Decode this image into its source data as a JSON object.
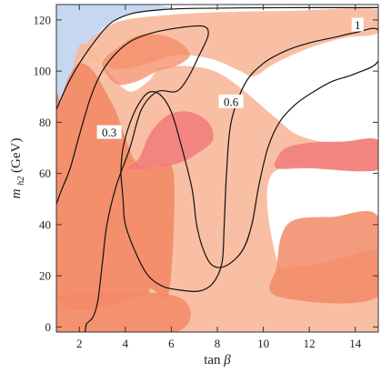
{
  "chart_data": {
    "type": "contour",
    "xlabel": {
      "text": "tan",
      "symbol": "β"
    },
    "ylabel": {
      "text": "m",
      "subscript": "h2",
      "suffix": "(GeV)"
    },
    "xlim": [
      1,
      15
    ],
    "ylim": [
      -2,
      126
    ],
    "xticks": [
      2,
      4,
      6,
      8,
      10,
      12,
      14
    ],
    "yticks": [
      0,
      20,
      40,
      60,
      80,
      100,
      120
    ],
    "colors": {
      "excluded_light": "#f8b89a",
      "excluded_medium": "#f38a66",
      "excluded_pink": "#f27a7a",
      "blue_region": "#c6d8ef",
      "contour_line": "#111111",
      "frame": "#333333"
    },
    "regions": [
      {
        "name": "blue",
        "color": "blue_region",
        "opacity": 1,
        "points": [
          [
            1.0,
            85
          ],
          [
            2.0,
            105
          ],
          [
            3.2,
            118
          ],
          [
            4.5,
            123
          ],
          [
            6,
            125
          ],
          [
            1.0,
            125.5
          ]
        ]
      },
      {
        "name": "light-band",
        "color": "excluded_light",
        "opacity": 0.9,
        "points": [
          [
            1.0,
            -2
          ],
          [
            15,
            -2
          ],
          [
            15,
            28
          ],
          [
            13.5,
            27
          ],
          [
            12.5,
            25
          ],
          [
            11.5,
            24
          ],
          [
            10.6,
            26
          ],
          [
            10.4,
            60
          ],
          [
            14,
            61
          ],
          [
            15,
            62
          ],
          [
            15,
            73
          ],
          [
            13,
            72
          ],
          [
            11.5,
            75
          ],
          [
            10.5,
            82
          ],
          [
            9.2,
            92
          ],
          [
            8.3,
            98
          ],
          [
            7.5,
            101
          ],
          [
            6.5,
            102
          ],
          [
            5.5,
            101
          ],
          [
            5.0,
            96
          ],
          [
            4.2,
            92
          ],
          [
            3.4,
            98
          ],
          [
            2.6,
            108
          ],
          [
            2.0,
            110
          ],
          [
            1.6,
            96
          ],
          [
            1.2,
            88
          ],
          [
            1.0,
            85
          ]
        ]
      },
      {
        "name": "top-band",
        "color": "excluded_light",
        "opacity": 0.9,
        "points": [
          [
            2.2,
            108
          ],
          [
            3.0,
            116
          ],
          [
            4.0,
            120
          ],
          [
            6,
            122
          ],
          [
            8,
            123
          ],
          [
            11,
            123.5
          ],
          [
            15,
            124
          ],
          [
            15,
            115
          ],
          [
            13.5,
            113
          ],
          [
            12,
            109
          ],
          [
            10.5,
            103
          ],
          [
            9.6,
            98
          ],
          [
            9,
            100
          ],
          [
            8,
            104
          ],
          [
            7,
            106
          ],
          [
            6,
            106
          ],
          [
            5,
            103
          ],
          [
            3.5,
            101
          ]
        ]
      },
      {
        "name": "medium-left",
        "color": "excluded_medium",
        "opacity": 0.9,
        "points": [
          [
            1.0,
            12
          ],
          [
            4.6,
            12
          ],
          [
            5.1,
            15
          ],
          [
            5.9,
            14
          ],
          [
            6.1,
            60
          ],
          [
            5.3,
            62
          ],
          [
            4.5,
            64
          ],
          [
            4.0,
            74
          ],
          [
            3.6,
            84
          ],
          [
            3.2,
            91
          ],
          [
            2.6,
            100
          ],
          [
            2.0,
            103
          ],
          [
            1.5,
            97
          ],
          [
            1.2,
            88
          ],
          [
            1.0,
            85
          ]
        ]
      },
      {
        "name": "medium-bottom-left",
        "color": "excluded_medium",
        "opacity": 0.85,
        "points": [
          [
            1.0,
            -2
          ],
          [
            6.2,
            -2
          ],
          [
            6.2,
            12
          ],
          [
            1.0,
            12
          ]
        ]
      },
      {
        "name": "medium-center-top",
        "color": "excluded_medium",
        "opacity": 0.75,
        "points": [
          [
            3.0,
            103
          ],
          [
            3.8,
            110
          ],
          [
            4.6,
            114
          ],
          [
            5.6,
            114
          ],
          [
            6.4,
            111
          ],
          [
            6.8,
            106
          ],
          [
            6.2,
            102
          ],
          [
            5.4,
            100
          ],
          [
            4.5,
            96
          ],
          [
            3.6,
            95
          ]
        ]
      },
      {
        "name": "medium-right-lower",
        "color": "excluded_medium",
        "opacity": 0.85,
        "points": [
          [
            10.6,
            12
          ],
          [
            15,
            12
          ],
          [
            15,
            43
          ],
          [
            13,
            43
          ],
          [
            11.4,
            42
          ],
          [
            10.8,
            36
          ],
          [
            10.6,
            24
          ]
        ]
      },
      {
        "name": "pink-left",
        "color": "excluded_pink",
        "opacity": 0.85,
        "points": [
          [
            4.1,
            62
          ],
          [
            4.6,
            66
          ],
          [
            5.1,
            76
          ],
          [
            5.9,
            83
          ],
          [
            6.8,
            84
          ],
          [
            7.6,
            80
          ],
          [
            7.8,
            73
          ],
          [
            7.0,
            67
          ],
          [
            6.3,
            64
          ],
          [
            5.2,
            62
          ]
        ]
      },
      {
        "name": "pink-right",
        "color": "excluded_pink",
        "opacity": 0.85,
        "points": [
          [
            10.6,
            62
          ],
          [
            12,
            62
          ],
          [
            15,
            61.5
          ],
          [
            15,
            73
          ],
          [
            13.5,
            72.5
          ],
          [
            12,
            72
          ],
          [
            11,
            70
          ],
          [
            10.6,
            66
          ]
        ]
      }
    ],
    "contours": [
      {
        "level": "0.3",
        "label_at": [
          3.3,
          76
        ],
        "points": [
          [
            1.0,
            48
          ],
          [
            1.2,
            53
          ],
          [
            1.6,
            62
          ],
          [
            2.0,
            75
          ],
          [
            2.5,
            90
          ],
          [
            3.0,
            100
          ],
          [
            3.6,
            107
          ],
          [
            4.3,
            112
          ],
          [
            5.2,
            115
          ],
          [
            6.4,
            117
          ],
          [
            7.4,
            117.5
          ],
          [
            7.6,
            114
          ],
          [
            7.2,
            106
          ],
          [
            6.7,
            97
          ],
          [
            6.2,
            92
          ],
          [
            5.4,
            92
          ],
          [
            4.7,
            85
          ],
          [
            4.2,
            70
          ],
          [
            3.6,
            55
          ],
          [
            3.2,
            40
          ],
          [
            3.0,
            25
          ],
          [
            2.8,
            10
          ],
          [
            2.6,
            4
          ],
          [
            2.4,
            2
          ],
          [
            2.3,
            1
          ],
          [
            2.25,
            -2
          ]
        ]
      },
      {
        "level": "0.6",
        "label_at": [
          8.6,
          88
        ],
        "points": [
          [
            3.8,
            60
          ],
          [
            3.9,
            50
          ],
          [
            4.0,
            40
          ],
          [
            4.5,
            28
          ],
          [
            5.0,
            20
          ],
          [
            5.6,
            16
          ],
          [
            6.3,
            14.5
          ],
          [
            7.2,
            14
          ],
          [
            7.8,
            17
          ],
          [
            8.2,
            25
          ],
          [
            8.3,
            40
          ],
          [
            8.4,
            60
          ],
          [
            8.6,
            80
          ],
          [
            9.2,
            95
          ],
          [
            10.0,
            103
          ],
          [
            11.0,
            108
          ],
          [
            12.0,
            111
          ],
          [
            13.0,
            113
          ],
          [
            14.0,
            115
          ],
          [
            15.0,
            116
          ],
          [
            15.0,
            104
          ],
          [
            14.0,
            99
          ],
          [
            13.0,
            96
          ],
          [
            12.2,
            92
          ],
          [
            11.4,
            87
          ],
          [
            10.7,
            80
          ],
          [
            10.2,
            70
          ],
          [
            9.8,
            55
          ],
          [
            9.5,
            40
          ],
          [
            9.1,
            30
          ],
          [
            8.4,
            24
          ],
          [
            7.8,
            24
          ],
          [
            7.4,
            30
          ],
          [
            7.1,
            40
          ],
          [
            6.9,
            54
          ],
          [
            6.4,
            72
          ],
          [
            6.0,
            84
          ],
          [
            5.6,
            90
          ],
          [
            5.2,
            92
          ],
          [
            4.8,
            90
          ],
          [
            4.3,
            82
          ],
          [
            3.9,
            70
          ],
          [
            3.8,
            60
          ]
        ]
      },
      {
        "level": "1",
        "label_at": [
          14.1,
          118
        ],
        "points": [
          [
            1.0,
            85
          ],
          [
            1.5,
            95
          ],
          [
            2.0,
            103
          ],
          [
            2.7,
            112
          ],
          [
            3.4,
            119
          ],
          [
            4.3,
            122.5
          ],
          [
            5.6,
            124
          ],
          [
            7.0,
            124.5
          ],
          [
            9.0,
            124.7
          ],
          [
            12.0,
            124.8
          ],
          [
            15.0,
            124.8
          ]
        ]
      }
    ]
  }
}
